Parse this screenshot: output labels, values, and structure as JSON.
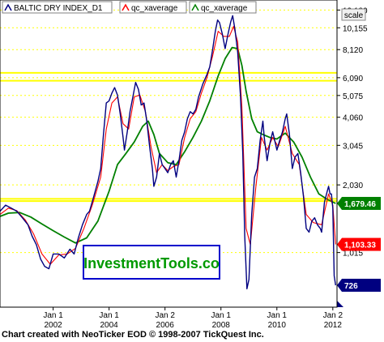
{
  "chart_data": {
    "type": "line",
    "title": "",
    "xlabel": "",
    "ylabel": "",
    "y_scale": "log",
    "ylim": [
      580,
      13500
    ],
    "scale_button_label": "scale",
    "watermark": "InvestmentTools.co",
    "footer": "Chart created with NeoTicker EOD © 1998-2007 TickQuest Inc.",
    "legend": [
      {
        "name": "BALTIC DRY INDEX_D1",
        "color": "#000080"
      },
      {
        "name": "qc_xaverage",
        "color": "#ff0000"
      },
      {
        "name": "qc_xaverage",
        "color": "#008000"
      }
    ],
    "y_ticks": [
      {
        "label": "12,180",
        "value": 12180
      },
      {
        "label": "10,155",
        "value": 10155
      },
      {
        "label": "8,120",
        "value": 8120
      },
      {
        "label": "6,090",
        "value": 6090
      },
      {
        "label": "5,075",
        "value": 5075
      },
      {
        "label": "4,060",
        "value": 4060
      },
      {
        "label": "3,045",
        "value": 3045
      },
      {
        "label": "2,030",
        "value": 2030
      },
      {
        "label": "1,015",
        "value": 1015
      }
    ],
    "x_ticks": [
      {
        "line1": "Jan 1",
        "line2": "2002",
        "year": 2002.0
      },
      {
        "line1": "Jan 1",
        "line2": "2004",
        "year": 2004.0
      },
      {
        "line1": "Jan 2",
        "line2": "2006",
        "year": 2006.0
      },
      {
        "line1": "Jan 1",
        "line2": "2008",
        "year": 2008.0
      },
      {
        "line1": "Jan 1",
        "line2": "2010",
        "year": 2010.0
      },
      {
        "line1": "Jan 2",
        "line2": "2012",
        "year": 2012.0
      }
    ],
    "x_range": [
      2000.1,
      2012.15
    ],
    "horizontal_lines": [
      {
        "value": 6400,
        "color": "#ffff00"
      },
      {
        "value": 5900,
        "color": "#ffff00"
      },
      {
        "value": 1760,
        "color": "#ffff00"
      },
      {
        "value": 1720,
        "color": "#ffff00"
      }
    ],
    "price_labels": [
      {
        "text": "1,679.46",
        "value": 1679.46,
        "bg": "#008000",
        "fg": "#ffffff"
      },
      {
        "text": "1,103.33",
        "value": 1103.33,
        "bg": "#ff0000",
        "fg": "#ffffff"
      },
      {
        "text": "726",
        "value": 726,
        "bg": "#000080",
        "fg": "#ffffff"
      }
    ],
    "series": [
      {
        "name": "BALTIC DRY INDEX_D1",
        "color": "#000080",
        "points": [
          [
            2000.1,
            1550
          ],
          [
            2000.3,
            1650
          ],
          [
            2000.5,
            1600
          ],
          [
            2000.7,
            1550
          ],
          [
            2000.9,
            1450
          ],
          [
            2001.1,
            1350
          ],
          [
            2001.25,
            1200
          ],
          [
            2001.4,
            1100
          ],
          [
            2001.55,
            950
          ],
          [
            2001.7,
            880
          ],
          [
            2001.85,
            860
          ],
          [
            2002.0,
            1000
          ],
          [
            2002.2,
            1000
          ],
          [
            2002.4,
            960
          ],
          [
            2002.6,
            1050
          ],
          [
            2002.75,
            1000
          ],
          [
            2002.9,
            1180
          ],
          [
            2003.05,
            1350
          ],
          [
            2003.2,
            1500
          ],
          [
            2003.3,
            1550
          ],
          [
            2003.45,
            1800
          ],
          [
            2003.6,
            2100
          ],
          [
            2003.7,
            2400
          ],
          [
            2003.8,
            3400
          ],
          [
            2003.9,
            4700
          ],
          [
            2004.0,
            4800
          ],
          [
            2004.1,
            5200
          ],
          [
            2004.2,
            5500
          ],
          [
            2004.3,
            5100
          ],
          [
            2004.4,
            4200
          ],
          [
            2004.5,
            3300
          ],
          [
            2004.55,
            2900
          ],
          [
            2004.65,
            3500
          ],
          [
            2004.75,
            4300
          ],
          [
            2004.85,
            5000
          ],
          [
            2004.95,
            5800
          ],
          [
            2005.05,
            5400
          ],
          [
            2005.15,
            4600
          ],
          [
            2005.25,
            4700
          ],
          [
            2005.35,
            3900
          ],
          [
            2005.45,
            3000
          ],
          [
            2005.55,
            2400
          ],
          [
            2005.6,
            2000
          ],
          [
            2005.7,
            2200
          ],
          [
            2005.8,
            2800
          ],
          [
            2005.9,
            2500
          ],
          [
            2006.0,
            2400
          ],
          [
            2006.1,
            2300
          ],
          [
            2006.2,
            2500
          ],
          [
            2006.3,
            2600
          ],
          [
            2006.4,
            2200
          ],
          [
            2006.5,
            2600
          ],
          [
            2006.6,
            3200
          ],
          [
            2006.7,
            3500
          ],
          [
            2006.8,
            4000
          ],
          [
            2006.9,
            4300
          ],
          [
            2007.0,
            4200
          ],
          [
            2007.1,
            4400
          ],
          [
            2007.2,
            5000
          ],
          [
            2007.35,
            5700
          ],
          [
            2007.5,
            6300
          ],
          [
            2007.6,
            6800
          ],
          [
            2007.7,
            8100
          ],
          [
            2007.8,
            9800
          ],
          [
            2007.88,
            11000
          ],
          [
            2007.95,
            10700
          ],
          [
            2008.05,
            9500
          ],
          [
            2008.15,
            8200
          ],
          [
            2008.25,
            9500
          ],
          [
            2008.35,
            10800
          ],
          [
            2008.42,
            11500
          ],
          [
            2008.5,
            10000
          ],
          [
            2008.6,
            7900
          ],
          [
            2008.7,
            5000
          ],
          [
            2008.78,
            2800
          ],
          [
            2008.85,
            1200
          ],
          [
            2008.93,
            700
          ],
          [
            2009.0,
            770
          ],
          [
            2009.1,
            1500
          ],
          [
            2009.2,
            2200
          ],
          [
            2009.3,
            2400
          ],
          [
            2009.4,
            3200
          ],
          [
            2009.5,
            3900
          ],
          [
            2009.55,
            3300
          ],
          [
            2009.65,
            2600
          ],
          [
            2009.75,
            3100
          ],
          [
            2009.85,
            3500
          ],
          [
            2009.95,
            3100
          ],
          [
            2010.0,
            2900
          ],
          [
            2010.1,
            3200
          ],
          [
            2010.2,
            3500
          ],
          [
            2010.3,
            4000
          ],
          [
            2010.35,
            4200
          ],
          [
            2010.45,
            3400
          ],
          [
            2010.55,
            2400
          ],
          [
            2010.65,
            2700
          ],
          [
            2010.75,
            2800
          ],
          [
            2010.85,
            2300
          ],
          [
            2010.95,
            1800
          ],
          [
            2011.05,
            1300
          ],
          [
            2011.15,
            1250
          ],
          [
            2011.25,
            1400
          ],
          [
            2011.35,
            1450
          ],
          [
            2011.45,
            1350
          ],
          [
            2011.55,
            1300
          ],
          [
            2011.6,
            1250
          ],
          [
            2011.7,
            1700
          ],
          [
            2011.8,
            1900
          ],
          [
            2011.85,
            2000
          ],
          [
            2011.9,
            1850
          ],
          [
            2011.95,
            1850
          ],
          [
            2012.0,
            1600
          ],
          [
            2012.05,
            800
          ],
          [
            2012.1,
            726
          ]
        ]
      },
      {
        "name": "qc_xaverage",
        "color": "#ff0000",
        "points": [
          [
            2000.1,
            1500
          ],
          [
            2000.4,
            1600
          ],
          [
            2000.7,
            1560
          ],
          [
            2001.0,
            1420
          ],
          [
            2001.3,
            1230
          ],
          [
            2001.6,
            1000
          ],
          [
            2001.9,
            900
          ],
          [
            2002.2,
            990
          ],
          [
            2002.5,
            1000
          ],
          [
            2002.8,
            1060
          ],
          [
            2003.1,
            1300
          ],
          [
            2003.4,
            1650
          ],
          [
            2003.7,
            2200
          ],
          [
            2003.9,
            3600
          ],
          [
            2004.1,
            4700
          ],
          [
            2004.3,
            5000
          ],
          [
            2004.5,
            3800
          ],
          [
            2004.7,
            3600
          ],
          [
            2004.9,
            5000
          ],
          [
            2005.1,
            5100
          ],
          [
            2005.3,
            4300
          ],
          [
            2005.5,
            3000
          ],
          [
            2005.7,
            2300
          ],
          [
            2005.9,
            2500
          ],
          [
            2006.1,
            2350
          ],
          [
            2006.3,
            2450
          ],
          [
            2006.5,
            2500
          ],
          [
            2006.7,
            3300
          ],
          [
            2006.9,
            4000
          ],
          [
            2007.1,
            4300
          ],
          [
            2007.3,
            5200
          ],
          [
            2007.5,
            6100
          ],
          [
            2007.7,
            7600
          ],
          [
            2007.9,
            9800
          ],
          [
            2008.1,
            9300
          ],
          [
            2008.3,
            9300
          ],
          [
            2008.45,
            10300
          ],
          [
            2008.6,
            8800
          ],
          [
            2008.75,
            4500
          ],
          [
            2008.9,
            1300
          ],
          [
            2009.05,
            1100
          ],
          [
            2009.25,
            2000
          ],
          [
            2009.45,
            3300
          ],
          [
            2009.65,
            2900
          ],
          [
            2009.85,
            3300
          ],
          [
            2010.05,
            3000
          ],
          [
            2010.3,
            3700
          ],
          [
            2010.55,
            2800
          ],
          [
            2010.8,
            2500
          ],
          [
            2011.05,
            1500
          ],
          [
            2011.3,
            1380
          ],
          [
            2011.6,
            1350
          ],
          [
            2011.85,
            1850
          ],
          [
            2012.0,
            1650
          ],
          [
            2012.1,
            1103.33
          ]
        ]
      },
      {
        "name": "qc_xaverage",
        "color": "#008000",
        "points": [
          [
            2000.1,
            1470
          ],
          [
            2000.4,
            1520
          ],
          [
            2000.8,
            1530
          ],
          [
            2001.2,
            1460
          ],
          [
            2001.6,
            1360
          ],
          [
            2002.0,
            1270
          ],
          [
            2002.4,
            1190
          ],
          [
            2002.8,
            1120
          ],
          [
            2003.2,
            1180
          ],
          [
            2003.6,
            1400
          ],
          [
            2004.0,
            1900
          ],
          [
            2004.3,
            2500
          ],
          [
            2004.6,
            2800
          ],
          [
            2004.9,
            3150
          ],
          [
            2005.2,
            3700
          ],
          [
            2005.4,
            3900
          ],
          [
            2005.6,
            3400
          ],
          [
            2005.8,
            2800
          ],
          [
            2006.1,
            2550
          ],
          [
            2006.4,
            2500
          ],
          [
            2006.7,
            2850
          ],
          [
            2007.0,
            3300
          ],
          [
            2007.3,
            3900
          ],
          [
            2007.6,
            4800
          ],
          [
            2007.9,
            6200
          ],
          [
            2008.15,
            7400
          ],
          [
            2008.4,
            8300
          ],
          [
            2008.6,
            8200
          ],
          [
            2008.75,
            6900
          ],
          [
            2008.9,
            5300
          ],
          [
            2009.1,
            4000
          ],
          [
            2009.3,
            3500
          ],
          [
            2009.5,
            3400
          ],
          [
            2009.75,
            3300
          ],
          [
            2010.0,
            3250
          ],
          [
            2010.3,
            3450
          ],
          [
            2010.6,
            3150
          ],
          [
            2010.9,
            2700
          ],
          [
            2011.2,
            2200
          ],
          [
            2011.5,
            1850
          ],
          [
            2011.8,
            1750
          ],
          [
            2012.1,
            1679.46
          ]
        ]
      }
    ]
  }
}
